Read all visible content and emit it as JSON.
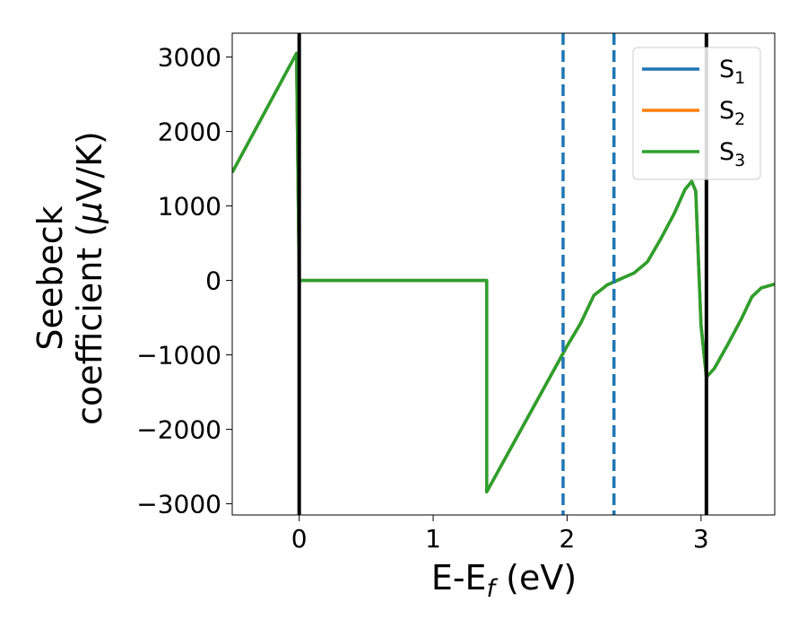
{
  "chart_data": {
    "type": "line",
    "xlabel": "E-E",
    "xlabel_sub": "f",
    "xlabel_unit": " (eV)",
    "ylabel_line1": "Seebeck",
    "ylabel_line2": "coefficient  (",
    "ylabel_mu": "μ",
    "ylabel_unit": "V/K)",
    "xlim": [
      -0.5,
      3.55
    ],
    "ylim": [
      -3150,
      3320
    ],
    "xticks": [
      {
        "value": 0,
        "label": "0"
      },
      {
        "value": 1,
        "label": "1"
      },
      {
        "value": 2,
        "label": "2"
      },
      {
        "value": 3,
        "label": "3"
      }
    ],
    "yticks": [
      {
        "value": 3000,
        "label": "3000"
      },
      {
        "value": 2000,
        "label": "2000"
      },
      {
        "value": 1000,
        "label": "1000"
      },
      {
        "value": 0,
        "label": "0"
      },
      {
        "value": -1000,
        "label": "−1000"
      },
      {
        "value": -2000,
        "label": "−2000"
      },
      {
        "value": -3000,
        "label": "−3000"
      }
    ],
    "grid": false,
    "legend_position": "top-right",
    "series": [
      {
        "name": "S",
        "sub": "1",
        "color": "#1f77b4",
        "points": [
          [
            -0.5,
            1450
          ],
          [
            -0.02,
            3050
          ],
          [
            0,
            0
          ],
          [
            1.4,
            0
          ],
          [
            1.4,
            -2840
          ],
          [
            2.0,
            -880
          ],
          [
            2.1,
            -580
          ],
          [
            2.2,
            -200
          ],
          [
            2.3,
            -60
          ],
          [
            2.4,
            20
          ],
          [
            2.5,
            100
          ],
          [
            2.6,
            250
          ],
          [
            2.7,
            560
          ],
          [
            2.8,
            900
          ],
          [
            2.88,
            1220
          ],
          [
            2.93,
            1330
          ],
          [
            2.96,
            1200
          ],
          [
            3.0,
            -600
          ],
          [
            3.04,
            -1300
          ],
          [
            3.1,
            -1180
          ],
          [
            3.2,
            -860
          ],
          [
            3.3,
            -520
          ],
          [
            3.38,
            -220
          ],
          [
            3.45,
            -100
          ],
          [
            3.55,
            -50
          ]
        ]
      },
      {
        "name": "S",
        "sub": "2",
        "color": "#ff7f0e",
        "points": [
          [
            -0.5,
            1450
          ],
          [
            -0.02,
            3050
          ],
          [
            0,
            0
          ],
          [
            1.4,
            0
          ],
          [
            1.4,
            -2840
          ],
          [
            2.0,
            -880
          ],
          [
            2.1,
            -580
          ],
          [
            2.2,
            -200
          ],
          [
            2.3,
            -60
          ],
          [
            2.4,
            20
          ],
          [
            2.5,
            100
          ],
          [
            2.6,
            250
          ],
          [
            2.7,
            560
          ],
          [
            2.8,
            900
          ],
          [
            2.88,
            1220
          ],
          [
            2.93,
            1330
          ],
          [
            2.96,
            1200
          ],
          [
            3.0,
            -600
          ],
          [
            3.04,
            -1300
          ],
          [
            3.1,
            -1180
          ],
          [
            3.2,
            -860
          ],
          [
            3.3,
            -520
          ],
          [
            3.38,
            -220
          ],
          [
            3.45,
            -100
          ],
          [
            3.55,
            -50
          ]
        ]
      },
      {
        "name": "S",
        "sub": "3",
        "color": "#2ca02c",
        "points": [
          [
            -0.5,
            1450
          ],
          [
            -0.02,
            3050
          ],
          [
            0,
            0
          ],
          [
            1.4,
            0
          ],
          [
            1.4,
            -2840
          ],
          [
            2.0,
            -880
          ],
          [
            2.1,
            -580
          ],
          [
            2.2,
            -200
          ],
          [
            2.3,
            -60
          ],
          [
            2.4,
            20
          ],
          [
            2.5,
            100
          ],
          [
            2.6,
            250
          ],
          [
            2.7,
            560
          ],
          [
            2.8,
            900
          ],
          [
            2.88,
            1220
          ],
          [
            2.93,
            1330
          ],
          [
            2.96,
            1200
          ],
          [
            3.0,
            -600
          ],
          [
            3.04,
            -1300
          ],
          [
            3.1,
            -1180
          ],
          [
            3.2,
            -860
          ],
          [
            3.3,
            -520
          ],
          [
            3.38,
            -220
          ],
          [
            3.45,
            -100
          ],
          [
            3.55,
            -50
          ]
        ]
      }
    ],
    "vlines": [
      {
        "x": 0,
        "style": "solid",
        "color": "#000000"
      },
      {
        "x": 3.04,
        "style": "solid",
        "color": "#000000"
      },
      {
        "x": 1.97,
        "style": "dashed",
        "color": "#1f77b4"
      },
      {
        "x": 2.35,
        "style": "dashed",
        "color": "#1f77b4"
      }
    ]
  }
}
